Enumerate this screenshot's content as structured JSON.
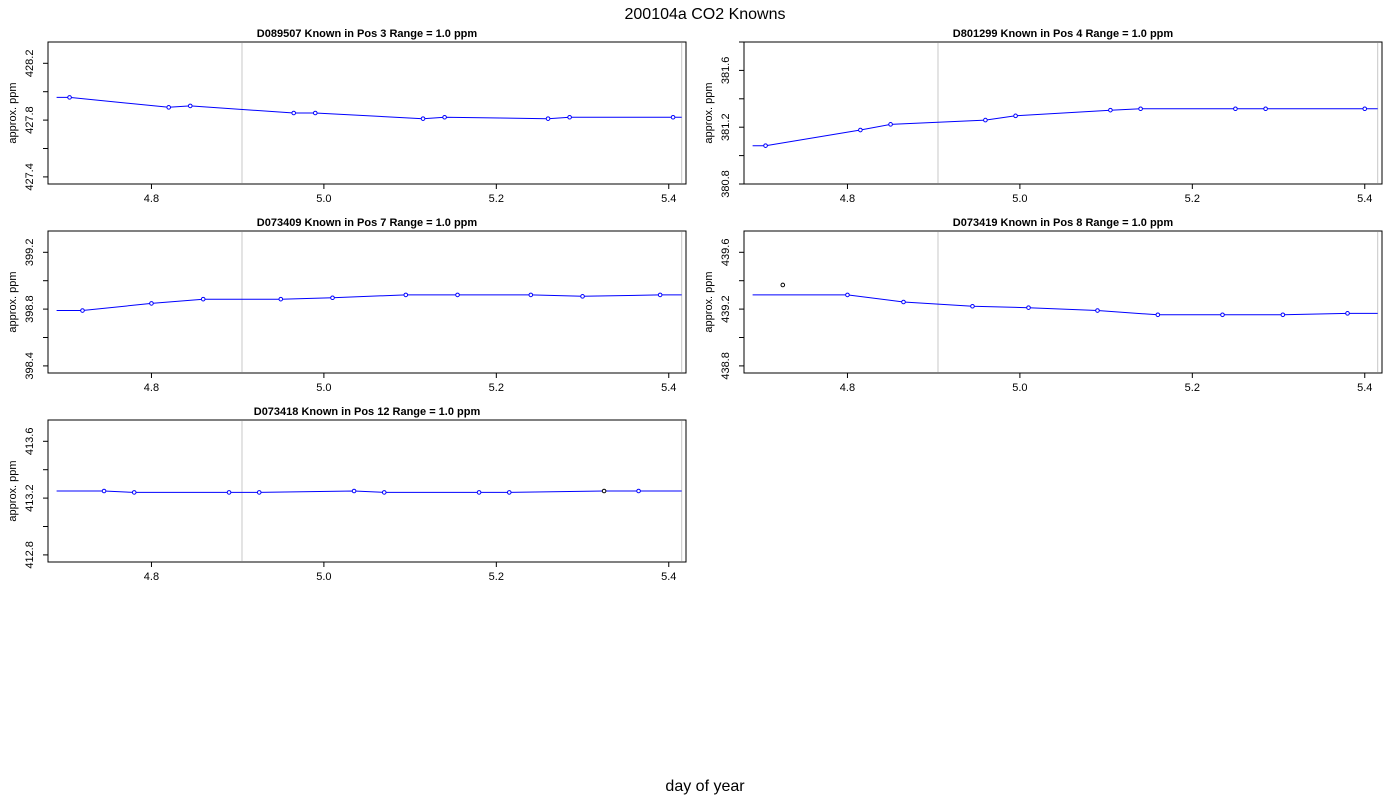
{
  "figure": {
    "title": "200104a   CO2 Knowns",
    "xlabel": "day of year"
  },
  "colors": {
    "series_line": "#0000ff",
    "flagged_point": "#000000",
    "marker_line": "#c8c8c8"
  },
  "chart_data": [
    {
      "type": "line",
      "title": "D089507    Known in Pos 3          Range = 1.0 ppm",
      "ylabel": "approx. ppm",
      "xlim": [
        4.68,
        5.42
      ],
      "ylim": [
        427.35,
        428.35
      ],
      "yticks": [
        "427.4",
        "427.8",
        "428.2"
      ],
      "xticks": [
        "4.8",
        "5.0",
        "5.2",
        "5.4"
      ],
      "reference_x": [
        4.905,
        5.415
      ],
      "line": {
        "x": [
          4.69,
          4.705,
          4.82,
          4.845,
          4.965,
          4.99,
          5.115,
          5.14,
          5.26,
          5.285,
          5.405,
          5.415
        ],
        "y": [
          427.96,
          427.96,
          427.89,
          427.9,
          427.85,
          427.85,
          427.81,
          427.82,
          427.81,
          427.82,
          427.82,
          427.82
        ]
      },
      "points": {
        "x": [
          4.705,
          4.82,
          4.845,
          4.965,
          4.99,
          5.115,
          5.14,
          5.26,
          5.285,
          5.405
        ],
        "y": [
          427.96,
          427.89,
          427.9,
          427.85,
          427.85,
          427.81,
          427.82,
          427.81,
          427.82,
          427.82
        ]
      },
      "flagged": {
        "x": [],
        "y": []
      }
    },
    {
      "type": "line",
      "title": "D801299    Known in Pos 4          Range = 1.0 ppm",
      "ylabel": "approx. ppm",
      "xlim": [
        4.68,
        5.42
      ],
      "ylim": [
        380.8,
        381.8
      ],
      "yticks": [
        "380.8",
        "381.2",
        "381.6"
      ],
      "xticks": [
        "4.8",
        "5.0",
        "5.2",
        "5.4"
      ],
      "reference_x": [
        4.905,
        5.415
      ],
      "line": {
        "x": [
          4.69,
          4.705,
          4.815,
          4.85,
          4.96,
          4.995,
          5.105,
          5.14,
          5.25,
          5.285,
          5.4,
          5.415
        ],
        "y": [
          381.07,
          381.07,
          381.18,
          381.22,
          381.25,
          381.28,
          381.32,
          381.33,
          381.33,
          381.33,
          381.33,
          381.33
        ]
      },
      "points": {
        "x": [
          4.705,
          4.815,
          4.85,
          4.96,
          4.995,
          5.105,
          5.14,
          5.25,
          5.285,
          5.4
        ],
        "y": [
          381.07,
          381.18,
          381.22,
          381.25,
          381.28,
          381.32,
          381.33,
          381.33,
          381.33,
          381.33
        ]
      },
      "flagged": {
        "x": [],
        "y": []
      }
    },
    {
      "type": "line",
      "title": "D073409    Known in Pos 7          Range = 1.0 ppm",
      "ylabel": "approx. ppm",
      "xlim": [
        4.68,
        5.42
      ],
      "ylim": [
        398.35,
        399.35
      ],
      "yticks": [
        "398.4",
        "398.8",
        "399.2"
      ],
      "xticks": [
        "4.8",
        "5.0",
        "5.2",
        "5.4"
      ],
      "reference_x": [
        4.905,
        5.415
      ],
      "line": {
        "x": [
          4.69,
          4.72,
          4.8,
          4.86,
          4.95,
          5.01,
          5.095,
          5.155,
          5.24,
          5.3,
          5.39,
          5.415
        ],
        "y": [
          398.79,
          398.79,
          398.84,
          398.87,
          398.87,
          398.88,
          398.9,
          398.9,
          398.9,
          398.89,
          398.9,
          398.9
        ]
      },
      "points": {
        "x": [
          4.72,
          4.8,
          4.86,
          4.95,
          5.01,
          5.095,
          5.155,
          5.24,
          5.3,
          5.39
        ],
        "y": [
          398.79,
          398.84,
          398.87,
          398.87,
          398.88,
          398.9,
          398.9,
          398.9,
          398.89,
          398.9
        ]
      },
      "flagged": {
        "x": [],
        "y": []
      }
    },
    {
      "type": "line",
      "title": "D073419    Known in Pos 8          Range = 1.0 ppm",
      "ylabel": "approx. ppm",
      "xlim": [
        4.68,
        5.42
      ],
      "ylim": [
        438.75,
        439.75
      ],
      "yticks": [
        "438.8",
        "439.2",
        "439.6"
      ],
      "xticks": [
        "4.8",
        "5.0",
        "5.2",
        "5.4"
      ],
      "reference_x": [
        4.905,
        5.415
      ],
      "line": {
        "x": [
          4.69,
          4.8,
          4.865,
          4.945,
          5.01,
          5.09,
          5.16,
          5.235,
          5.305,
          5.38,
          5.415
        ],
        "y": [
          439.3,
          439.3,
          439.25,
          439.22,
          439.21,
          439.19,
          439.16,
          439.16,
          439.16,
          439.17,
          439.17
        ]
      },
      "points": {
        "x": [
          4.8,
          4.865,
          4.945,
          5.01,
          5.09,
          5.16,
          5.235,
          5.305,
          5.38
        ],
        "y": [
          439.3,
          439.25,
          439.22,
          439.21,
          439.19,
          439.16,
          439.16,
          439.16,
          439.17
        ]
      },
      "flagged": {
        "x": [
          4.725
        ],
        "y": [
          439.37
        ]
      }
    },
    {
      "type": "line",
      "title": "D073418    Known in Pos 12          Range = 1.0 ppm",
      "ylabel": "approx. ppm",
      "xlim": [
        4.68,
        5.42
      ],
      "ylim": [
        412.75,
        413.75
      ],
      "yticks": [
        "412.8",
        "413.2",
        "413.6"
      ],
      "xticks": [
        "4.8",
        "5.0",
        "5.2",
        "5.4"
      ],
      "reference_x": [
        4.905,
        5.415
      ],
      "line": {
        "x": [
          4.69,
          4.745,
          4.78,
          4.89,
          4.925,
          5.035,
          5.07,
          5.18,
          5.215,
          5.325,
          5.365,
          5.415
        ],
        "y": [
          413.25,
          413.25,
          413.24,
          413.24,
          413.24,
          413.25,
          413.24,
          413.24,
          413.24,
          413.25,
          413.25,
          413.25
        ]
      },
      "points": {
        "x": [
          4.745,
          4.78,
          4.89,
          4.925,
          5.035,
          5.07,
          5.18,
          5.215,
          5.365
        ],
        "y": [
          413.25,
          413.24,
          413.24,
          413.24,
          413.25,
          413.24,
          413.24,
          413.24,
          413.25
        ]
      },
      "flagged": {
        "x": [
          5.325
        ],
        "y": [
          413.25
        ]
      }
    }
  ]
}
